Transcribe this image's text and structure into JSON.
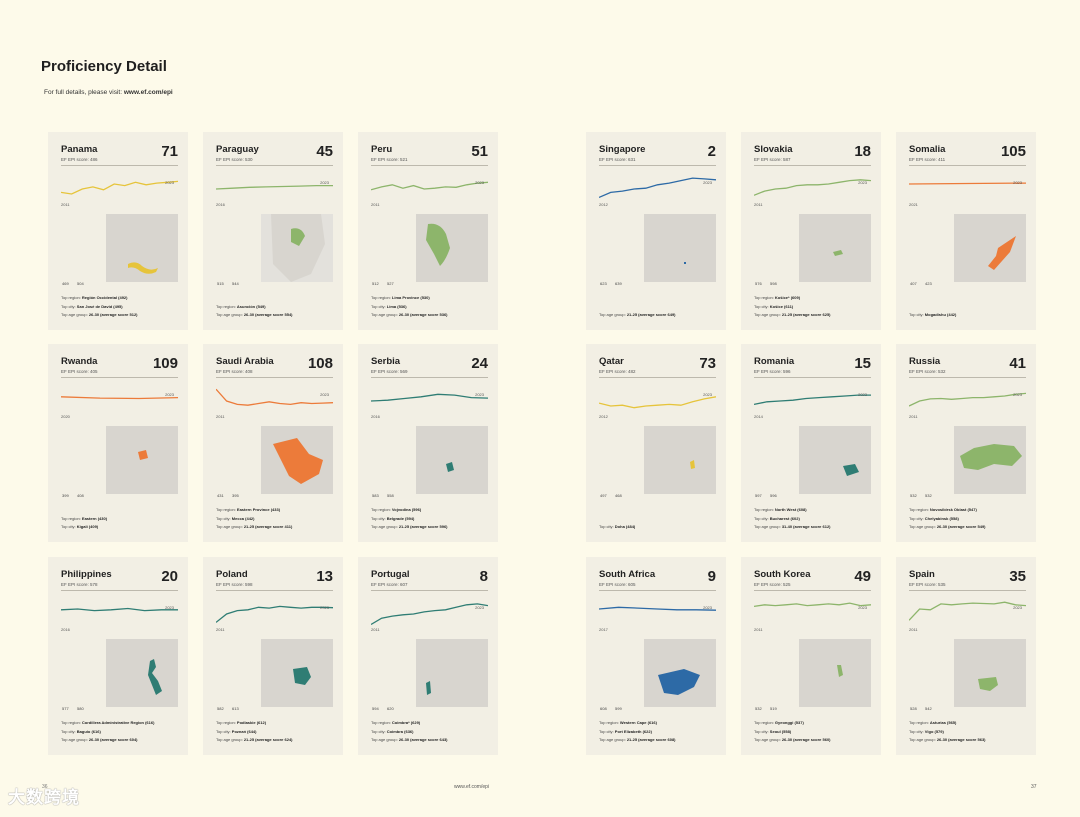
{
  "page": {
    "title": "Proficiency Detail",
    "subtitle_text": "For full details, please visit:",
    "subtitle_link": "www.ef.com/epi",
    "footer_left": "36",
    "footer_mid": "www.ef.com/epi",
    "footer_right": "37",
    "watermark": "大数跨境"
  },
  "colors": {
    "yellow": "#e6c43b",
    "green": "#8db56b",
    "teal": "#2f7d74",
    "orange": "#ec7b3a",
    "blue": "#2d6aa6",
    "map_bg": "#e3e1dc",
    "map_land": "#cfccc5"
  },
  "cards": [
    {
      "country": "Panama",
      "score": "EF EPI score: 486",
      "rank": "71",
      "start_year": "2011",
      "end_year": "2023",
      "color": "#e6c43b",
      "female": "469",
      "male": "504",
      "trend": [
        0.42,
        0.38,
        0.5,
        0.55,
        0.48,
        0.62,
        0.58,
        0.66,
        0.6,
        0.64,
        0.66,
        0.68
      ],
      "shape": "panama",
      "lines": [
        [
          "Top region: ",
          "Región Occidental (492)"
        ],
        [
          "Top city: ",
          "San José de David (495)"
        ],
        [
          "Top age group: ",
          "26-30 (average score 512)"
        ]
      ]
    },
    {
      "country": "Paraguay",
      "score": "EF EPI score: 530",
      "rank": "45",
      "start_year": "2016",
      "end_year": "2023",
      "color": "#8db56b",
      "female": "515",
      "male": "544",
      "trend": [
        0.5,
        0.52,
        0.54,
        0.55,
        0.56,
        0.57,
        0.58,
        0.58
      ],
      "shape": "paraguay",
      "lines": [
        [
          "Top region: ",
          "Asunción (549)"
        ],
        [
          "Top age group: ",
          "26-30 (average score 554)"
        ]
      ]
    },
    {
      "country": "Peru",
      "score": "EF EPI score: 521",
      "rank": "51",
      "start_year": "2011",
      "end_year": "2023",
      "color": "#8db56b",
      "female": "512",
      "male": "527",
      "trend": [
        0.48,
        0.55,
        0.6,
        0.52,
        0.58,
        0.5,
        0.52,
        0.55,
        0.54,
        0.6,
        0.64,
        0.66
      ],
      "shape": "peru",
      "lines": [
        [
          "Top region: ",
          "Lima Province (530)"
        ],
        [
          "Top city: ",
          "Lima (536)"
        ],
        [
          "Top age group: ",
          "26-30 (average score 536)"
        ]
      ]
    },
    {
      "country": "Rwanda",
      "score": "EF EPI score: 405",
      "rank": "109",
      "start_year": "2020",
      "end_year": "2023",
      "color": "#ec7b3a",
      "female": "399",
      "male": "408",
      "trend": [
        0.6,
        0.57,
        0.56,
        0.58
      ],
      "shape": "rwanda",
      "lines": [
        [
          "Top region: ",
          "Eastern (430)"
        ],
        [
          "Top city: ",
          "Kigali (409)"
        ]
      ]
    },
    {
      "country": "Saudi Arabia",
      "score": "EF EPI score: 408",
      "rank": "108",
      "start_year": "2011",
      "end_year": "2023",
      "color": "#ec7b3a",
      "female": "431",
      "male": "395",
      "trend": [
        0.78,
        0.5,
        0.42,
        0.4,
        0.44,
        0.48,
        0.44,
        0.42,
        0.46,
        0.44,
        0.45,
        0.46
      ],
      "shape": "saudi",
      "lines": [
        [
          "Top region: ",
          "Eastern Province (433)"
        ],
        [
          "Top city: ",
          "Mecca (442)"
        ],
        [
          "Top age group: ",
          "21-25 (average score 411)"
        ]
      ]
    },
    {
      "country": "Serbia",
      "score": "EF EPI score: 569",
      "rank": "24",
      "start_year": "2016",
      "end_year": "2023",
      "color": "#2f7d74",
      "female": "583",
      "male": "558",
      "trend": [
        0.5,
        0.52,
        0.56,
        0.6,
        0.66,
        0.64,
        0.58,
        0.57
      ],
      "shape": "serbia",
      "lines": [
        [
          "Top region: ",
          "Vojvodina (596)"
        ],
        [
          "Top city: ",
          "Belgrade (594)"
        ],
        [
          "Top age group: ",
          "21-25 (average score 596)"
        ]
      ]
    },
    {
      "country": "Philippines",
      "score": "EF EPI score: 578",
      "rank": "20",
      "start_year": "2016",
      "end_year": "2023",
      "color": "#2f7d74",
      "female": "577",
      "male": "580",
      "trend": [
        0.6,
        0.62,
        0.58,
        0.6,
        0.63,
        0.58,
        0.6,
        0.6
      ],
      "shape": "philippines",
      "lines": [
        [
          "Top region: ",
          "Cordillera Administrative Region (616)"
        ],
        [
          "Top city: ",
          "Baguio (616)"
        ],
        [
          "Top age group: ",
          "26-30 (average score 604)"
        ]
      ]
    },
    {
      "country": "Poland",
      "score": "EF EPI score: 598",
      "rank": "13",
      "start_year": "2011",
      "end_year": "2023",
      "color": "#2f7d74",
      "female": "582",
      "male": "613",
      "trend": [
        0.3,
        0.5,
        0.58,
        0.6,
        0.66,
        0.64,
        0.68,
        0.66,
        0.64,
        0.66,
        0.66,
        0.65
      ],
      "shape": "poland",
      "lines": [
        [
          "Top region: ",
          "Podlaskie (612)"
        ],
        [
          "Top city: ",
          "Poznań (644)"
        ],
        [
          "Top age group: ",
          "21-25 (average score 624)"
        ]
      ]
    },
    {
      "country": "Portugal",
      "score": "EF EPI score: 607",
      "rank": "8",
      "start_year": "2011",
      "end_year": "2023",
      "color": "#2f7d74",
      "female": "594",
      "male": "620",
      "trend": [
        0.25,
        0.4,
        0.45,
        0.48,
        0.5,
        0.55,
        0.58,
        0.6,
        0.66,
        0.72,
        0.74,
        0.7
      ],
      "shape": "portugal",
      "lines": [
        [
          "Top region: ",
          "Coimbra* (629)"
        ],
        [
          "Top city: ",
          "Coimbra (636)"
        ],
        [
          "Top age group: ",
          "26-30 (average score 643)"
        ]
      ]
    },
    {
      "country": "Singapore",
      "score": "EF EPI score: 631",
      "rank": "2",
      "start_year": "2012",
      "end_year": "2023",
      "color": "#2d6aa6",
      "female": "623",
      "male": "639",
      "trend": [
        0.3,
        0.42,
        0.45,
        0.5,
        0.52,
        0.6,
        0.64,
        0.7,
        0.76,
        0.74,
        0.72
      ],
      "shape": "singapore",
      "lines": [
        [
          "Top age group: ",
          "21-25 (average score 649)"
        ]
      ]
    },
    {
      "country": "Slovakia",
      "score": "EF EPI score: 587",
      "rank": "18",
      "start_year": "2011",
      "end_year": "2023",
      "color": "#8db56b",
      "female": "576",
      "male": "598",
      "trend": [
        0.35,
        0.45,
        0.5,
        0.52,
        0.58,
        0.6,
        0.6,
        0.62,
        0.66,
        0.7,
        0.72,
        0.7
      ],
      "shape": "slovakia",
      "lines": [
        [
          "Top region: ",
          "Košice* (609)"
        ],
        [
          "Top city: ",
          "Košice (611)"
        ],
        [
          "Top age group: ",
          "21-25 (average score 625)"
        ]
      ]
    },
    {
      "country": "Somalia",
      "score": "EF EPI score: 411",
      "rank": "105",
      "start_year": "2021",
      "end_year": "2023",
      "color": "#ec7b3a",
      "female": "407",
      "male": "423",
      "trend": [
        0.62,
        0.63,
        0.64
      ],
      "shape": "somalia",
      "lines": [
        [
          "Top city: ",
          "Mogadishu (442)"
        ]
      ]
    },
    {
      "country": "Qatar",
      "score": "EF EPI score: 482",
      "rank": "73",
      "start_year": "2012",
      "end_year": "2023",
      "color": "#e6c43b",
      "female": "497",
      "male": "468",
      "trend": [
        0.45,
        0.38,
        0.4,
        0.34,
        0.38,
        0.4,
        0.42,
        0.4,
        0.48,
        0.55,
        0.6
      ],
      "shape": "qatar",
      "lines": [
        [
          "Top city: ",
          "Doha (484)"
        ]
      ]
    },
    {
      "country": "Romania",
      "score": "EF EPI score: 596",
      "rank": "15",
      "start_year": "2014",
      "end_year": "2023",
      "color": "#2f7d74",
      "female": "597",
      "male": "596",
      "trend": [
        0.42,
        0.48,
        0.5,
        0.52,
        0.56,
        0.58,
        0.6,
        0.62,
        0.64,
        0.64
      ],
      "shape": "romania",
      "lines": [
        [
          "Top region: ",
          "North West (608)"
        ],
        [
          "Top city: ",
          "Bucharest (602)"
        ],
        [
          "Top age group: ",
          "31-40 (average score 612)"
        ]
      ]
    },
    {
      "country": "Russia",
      "score": "EF EPI score: 532",
      "rank": "41",
      "start_year": "2011",
      "end_year": "2023",
      "color": "#8db56b",
      "female": "532",
      "male": "532",
      "trend": [
        0.38,
        0.5,
        0.55,
        0.56,
        0.54,
        0.56,
        0.58,
        0.58,
        0.6,
        0.62,
        0.66,
        0.68
      ],
      "shape": "russia",
      "lines": [
        [
          "Top region: ",
          "Novosibirsk Oblast (547)"
        ],
        [
          "Top city: ",
          "Chelyabinsk (558)"
        ],
        [
          "Top age group: ",
          "26-30 (average score 549)"
        ]
      ]
    },
    {
      "country": "South Africa",
      "score": "EF EPI score: 605",
      "rank": "9",
      "start_year": "2017",
      "end_year": "2023",
      "color": "#2d6aa6",
      "female": "608",
      "male": "599",
      "trend": [
        0.62,
        0.66,
        0.64,
        0.62,
        0.6,
        0.6,
        0.59
      ],
      "shape": "southafrica",
      "lines": [
        [
          "Top region: ",
          "Western Cape (616)"
        ],
        [
          "Top city: ",
          "Port Elizabeth (622)"
        ],
        [
          "Top age group: ",
          "21-25 (average score 608)"
        ]
      ]
    },
    {
      "country": "South Korea",
      "score": "EF EPI score: 525",
      "rank": "49",
      "start_year": "2011",
      "end_year": "2023",
      "color": "#8db56b",
      "female": "532",
      "male": "519",
      "trend": [
        0.68,
        0.72,
        0.7,
        0.72,
        0.74,
        0.7,
        0.72,
        0.74,
        0.72,
        0.76,
        0.7,
        0.72
      ],
      "shape": "korea",
      "lines": [
        [
          "Top region: ",
          "Gyeonggi (537)"
        ],
        [
          "Top city: ",
          "Seoul (558)"
        ],
        [
          "Top age group: ",
          "26-30 (average score 560)"
        ]
      ]
    },
    {
      "country": "Spain",
      "score": "EF EPI score: 535",
      "rank": "35",
      "start_year": "2011",
      "end_year": "2023",
      "color": "#8db56b",
      "female": "528",
      "male": "542",
      "trend": [
        0.35,
        0.62,
        0.6,
        0.74,
        0.72,
        0.74,
        0.76,
        0.75,
        0.74,
        0.78,
        0.72,
        0.7
      ],
      "shape": "spain",
      "lines": [
        [
          "Top region: ",
          "Asturias (565)"
        ],
        [
          "Top city: ",
          "Vigo (579)"
        ],
        [
          "Top age group: ",
          "26-30 (average score 563)"
        ]
      ]
    }
  ]
}
